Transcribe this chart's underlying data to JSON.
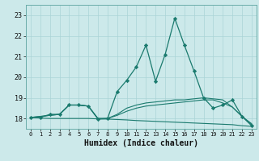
{
  "xlabel": "Humidex (Indice chaleur)",
  "background_color": "#cce9ea",
  "line_color": "#1a7a6e",
  "grid_color": "#aad4d6",
  "xlim": [
    -0.5,
    23.5
  ],
  "ylim": [
    17.5,
    23.5
  ],
  "yticks": [
    18,
    19,
    20,
    21,
    22,
    23
  ],
  "xticks": [
    0,
    1,
    2,
    3,
    4,
    5,
    6,
    7,
    8,
    9,
    10,
    11,
    12,
    13,
    14,
    15,
    16,
    17,
    18,
    19,
    20,
    21,
    22,
    23
  ],
  "lines": [
    {
      "x": [
        0,
        1,
        2,
        3,
        4,
        5,
        6,
        7,
        8,
        9,
        10,
        11,
        12,
        13,
        14,
        15,
        16,
        17,
        18,
        19,
        20,
        21,
        22,
        23
      ],
      "y": [
        18.05,
        18.05,
        18.2,
        18.2,
        18.65,
        18.65,
        18.6,
        17.97,
        18.0,
        19.3,
        19.85,
        20.5,
        21.55,
        19.8,
        21.1,
        22.85,
        21.55,
        20.3,
        19.0,
        18.5,
        18.65,
        18.9,
        18.1,
        17.65
      ],
      "marker": true
    },
    {
      "x": [
        0,
        3,
        4,
        5,
        6,
        7,
        8,
        9,
        10,
        11,
        12,
        13,
        14,
        15,
        16,
        17,
        18,
        19,
        20,
        21,
        22,
        23
      ],
      "y": [
        18.05,
        18.2,
        18.65,
        18.65,
        18.6,
        18.0,
        18.0,
        18.2,
        18.5,
        18.65,
        18.75,
        18.8,
        18.85,
        18.9,
        18.9,
        18.95,
        19.0,
        18.95,
        18.9,
        18.55,
        18.1,
        17.7
      ],
      "marker": false
    },
    {
      "x": [
        0,
        3,
        4,
        5,
        6,
        7,
        8,
        9,
        10,
        11,
        12,
        13,
        14,
        15,
        16,
        17,
        18,
        19,
        20,
        21,
        22,
        23
      ],
      "y": [
        18.05,
        18.2,
        18.65,
        18.65,
        18.6,
        18.0,
        18.0,
        18.15,
        18.35,
        18.5,
        18.6,
        18.65,
        18.7,
        18.75,
        18.8,
        18.85,
        18.9,
        18.9,
        18.75,
        18.55,
        18.1,
        17.75
      ],
      "marker": false
    },
    {
      "x": [
        0,
        1,
        2,
        3,
        4,
        5,
        6,
        7,
        8,
        9,
        10,
        11,
        12,
        13,
        14,
        15,
        16,
        17,
        18,
        19,
        20,
        21,
        22,
        23
      ],
      "y": [
        18.05,
        18.02,
        18.0,
        18.0,
        18.0,
        18.0,
        18.0,
        17.98,
        17.97,
        17.95,
        17.93,
        17.9,
        17.88,
        17.86,
        17.84,
        17.82,
        17.8,
        17.78,
        17.76,
        17.74,
        17.72,
        17.7,
        17.65,
        17.62
      ],
      "marker": false
    }
  ]
}
